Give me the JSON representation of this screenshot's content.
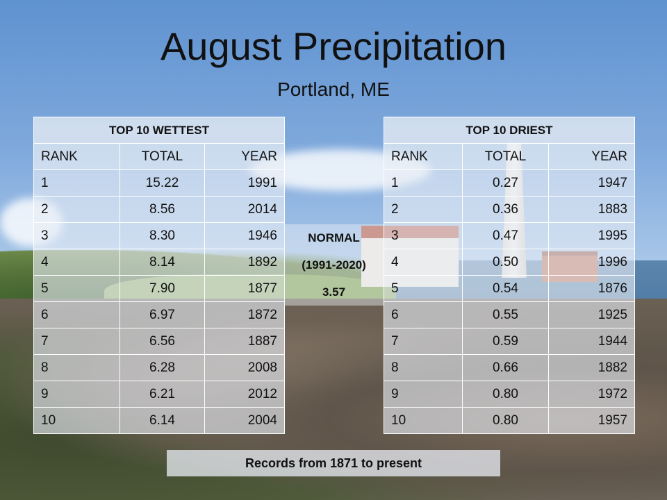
{
  "title": "August Precipitation",
  "subtitle": "Portland, ME",
  "wettest": {
    "heading": "TOP 10 WETTEST",
    "columns": [
      "RANK",
      "TOTAL",
      "YEAR"
    ],
    "rows": [
      {
        "rank": "1",
        "total": "15.22",
        "year": "1991"
      },
      {
        "rank": "2",
        "total": "8.56",
        "year": "2014"
      },
      {
        "rank": "3",
        "total": "8.30",
        "year": "1946"
      },
      {
        "rank": "4",
        "total": "8.14",
        "year": "1892"
      },
      {
        "rank": "5",
        "total": "7.90",
        "year": "1877"
      },
      {
        "rank": "6",
        "total": "6.97",
        "year": "1872"
      },
      {
        "rank": "7",
        "total": "6.56",
        "year": "1887"
      },
      {
        "rank": "8",
        "total": "6.28",
        "year": "2008"
      },
      {
        "rank": "9",
        "total": "6.21",
        "year": "2012"
      },
      {
        "rank": "10",
        "total": "6.14",
        "year": "2004"
      }
    ]
  },
  "driest": {
    "heading": "TOP 10 DRIEST",
    "columns": [
      "RANK",
      "TOTAL",
      "YEAR"
    ],
    "rows": [
      {
        "rank": "1",
        "total": "0.27",
        "year": "1947"
      },
      {
        "rank": "2",
        "total": "0.36",
        "year": "1883"
      },
      {
        "rank": "3",
        "total": "0.47",
        "year": "1995"
      },
      {
        "rank": "4",
        "total": "0.50",
        "year": "1996"
      },
      {
        "rank": "5",
        "total": "0.54",
        "year": "1876"
      },
      {
        "rank": "6",
        "total": "0.55",
        "year": "1925"
      },
      {
        "rank": "7",
        "total": "0.59",
        "year": "1944"
      },
      {
        "rank": "8",
        "total": "0.66",
        "year": "1882"
      },
      {
        "rank": "9",
        "total": "0.80",
        "year": "1972"
      },
      {
        "rank": "10",
        "total": "0.80",
        "year": "1957"
      }
    ]
  },
  "normal": {
    "label": "NORMAL",
    "period": "(1991-2020)",
    "value": "3.57"
  },
  "footer": "Records from 1871 to present"
}
